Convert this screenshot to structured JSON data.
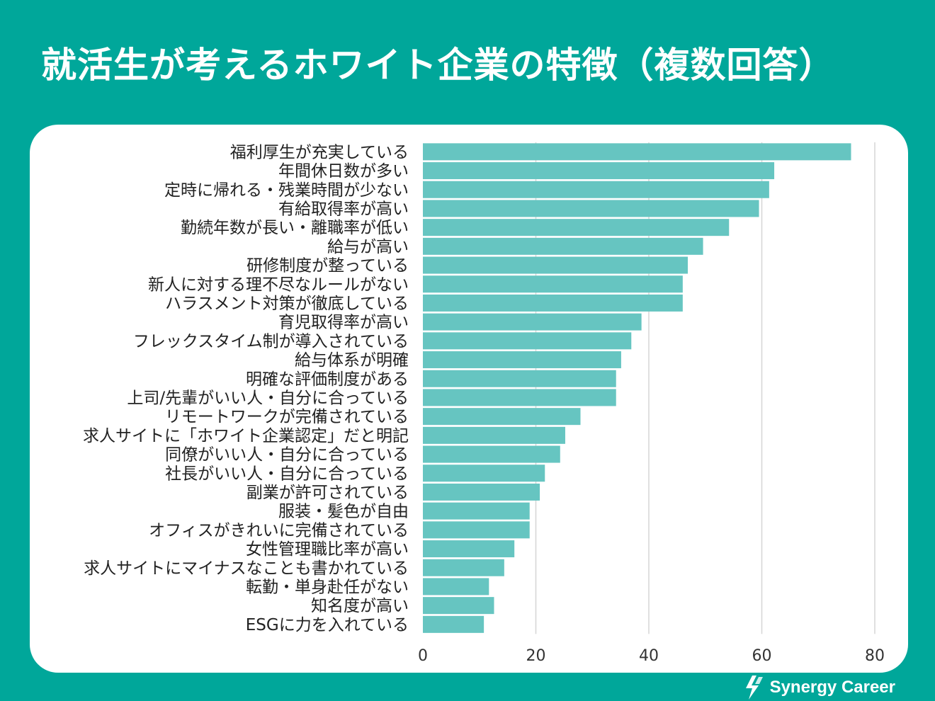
{
  "title": "就活生が考えるホワイト企業の特徴（複数回答）",
  "brand": {
    "name": "Synergy Career",
    "icon": "synergy-logo-icon"
  },
  "colors": {
    "background": "#00a79a",
    "bar": "#66c5c1",
    "panel": "#ffffff",
    "grid": "#d6d6d6"
  },
  "chart_data": {
    "type": "bar",
    "orientation": "horizontal",
    "title": "就活生が考えるホワイト企業の特徴（複数回答）",
    "xlabel": "",
    "ylabel": "",
    "xlim": [
      0,
      80
    ],
    "xticks": [
      0,
      20,
      40,
      60,
      80
    ],
    "grid": true,
    "categories": [
      "福利厚生が充実している",
      "年間休日数が多い",
      "定時に帰れる・残業時間が少ない",
      "有給取得率が高い",
      "勤続年数が長い・離職率が低い",
      "給与が高い",
      "研修制度が整っている",
      "新人に対する理不尽なルールがない",
      "ハラスメント対策が徹底している",
      "育児取得率が高い",
      "フレックスタイム制が導入されている",
      "給与体系が明確",
      "明確な評価制度がある",
      "上司/先輩がいい人・自分に合っている",
      "リモートワークが完備されている",
      "求人サイトに「ホワイト企業認定」だと明記",
      "同僚がいい人・自分に合っている",
      "社長がいい人・自分に合っている",
      "副業が許可されている",
      "服装・髪色が自由",
      "オフィスがきれいに完備されている",
      "女性管理職比率が高い",
      "求人サイトにマイナスなことも書かれている",
      "転勤・単身赴任がない",
      "知名度が高い",
      "ESGに力を入れている"
    ],
    "values": [
      75.8,
      62.2,
      61.3,
      59.5,
      54.2,
      49.6,
      46.9,
      46.0,
      46.0,
      38.7,
      36.9,
      35.1,
      34.2,
      34.2,
      27.9,
      25.2,
      24.3,
      21.6,
      20.7,
      18.9,
      18.9,
      16.2,
      14.4,
      11.7,
      12.6,
      10.8
    ]
  }
}
